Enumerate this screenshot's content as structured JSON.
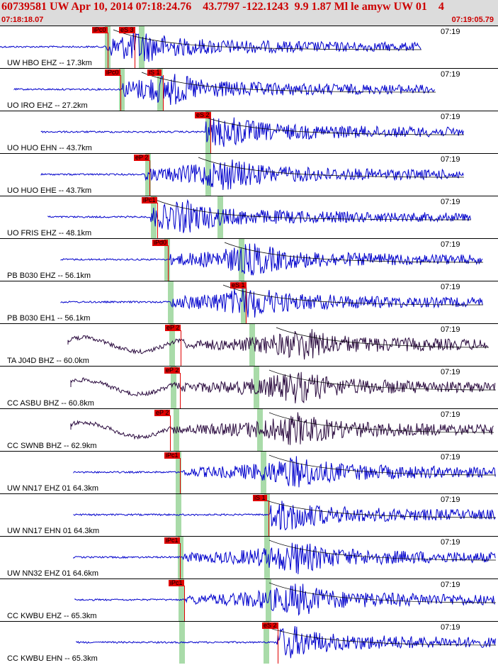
{
  "header": {
    "title": "60739581 UW Apr 10, 2014 07:18:24.76    43.7797 -122.1243  9.9 1.87 Ml le amyw UW 01    4",
    "start_time": "07:18:18.07",
    "end_time": "07:19:05.79"
  },
  "colors": {
    "header_bg": "#dcdcdc",
    "title": "#cc0000",
    "trace_blue": "#0000cc",
    "trace_dark": "#2b0b3f",
    "pick_red": "#e00000",
    "band_green": "#a9dba9"
  },
  "traces": [
    {
      "label": "UW HBO EHZ -- 17.3km",
      "time": "07:19",
      "color": "blue",
      "picks": [
        "iPc0",
        "eS 3"
      ]
    },
    {
      "label": "UO IRO EHZ -- 27.2km",
      "time": "07:19",
      "color": "blue",
      "picks": [
        "iPc0",
        "iS 1"
      ]
    },
    {
      "label": "UO HUO EHN -- 43.7km",
      "time": "07:19",
      "color": "blue",
      "picks": [
        "eS 2"
      ]
    },
    {
      "label": "UO HUO EHE -- 43.7km",
      "time": "07:19",
      "color": "blue",
      "picks": [
        "eP 2"
      ]
    },
    {
      "label": "UO FRIS EHZ -- 48.1km",
      "time": "07:19",
      "color": "blue",
      "picks": [
        "iPc1"
      ]
    },
    {
      "label": "PB B030 EHZ -- 56.1km",
      "time": "07:19",
      "color": "blue",
      "picks": [
        "iPd0"
      ]
    },
    {
      "label": "PB B030 EH1 -- 56.1km",
      "time": "07:19",
      "color": "blue",
      "picks": [
        "eS 1"
      ]
    },
    {
      "label": "TA J04D BHZ -- 60.0km",
      "time": "07:19",
      "color": "dark",
      "picks": [
        "eP 2"
      ]
    },
    {
      "label": "CC ASBU BHZ -- 60.8km",
      "time": "07:19",
      "color": "dark",
      "picks": [
        "eP 2"
      ]
    },
    {
      "label": "CC SWNB BHZ -- 62.9km",
      "time": "07:19",
      "color": "dark",
      "picks": [
        "eP 2"
      ]
    },
    {
      "label": "UW NN17 EHZ 01 64.3km",
      "time": "07:19",
      "color": "blue",
      "picks": [
        "iPc1"
      ]
    },
    {
      "label": "UW NN17 EHN 01 64.3km",
      "time": "07:19",
      "color": "blue",
      "picks": [
        "iS 1"
      ]
    },
    {
      "label": "UW NN32 EHZ 01 64.6km",
      "time": "07:19",
      "color": "blue",
      "picks": [
        "iPc1"
      ]
    },
    {
      "label": "CC KWBU EHZ -- 65.3km",
      "time": "07:19",
      "color": "blue",
      "picks": [
        "iPc1"
      ]
    },
    {
      "label": "CC KWBU EHN -- 65.3km",
      "time": "07:19",
      "color": "blue",
      "picks": [
        "eS 2"
      ]
    }
  ]
}
